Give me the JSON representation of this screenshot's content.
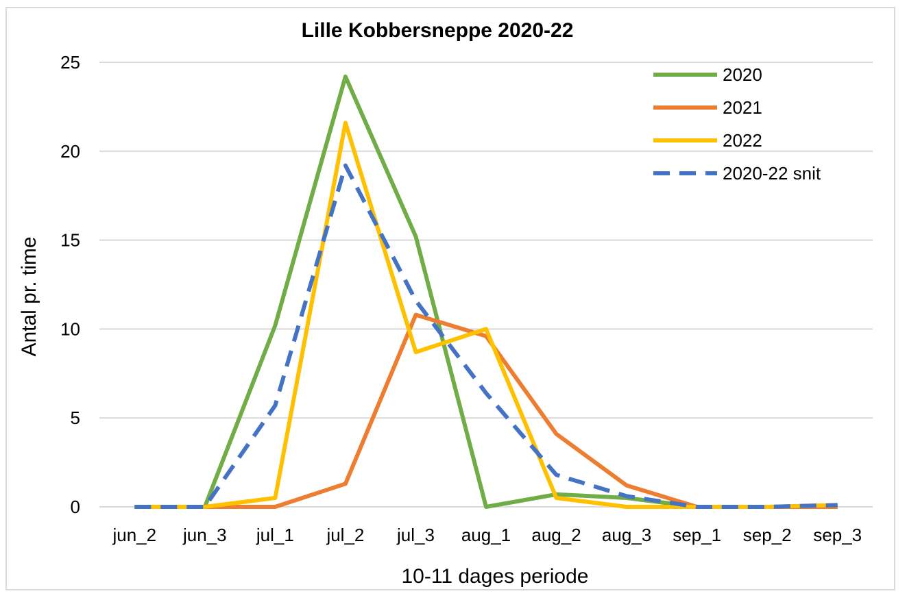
{
  "chart_data": {
    "type": "line",
    "title": "Lille Kobbersneppe 2020-22",
    "xlabel": "10-11 dages periode",
    "ylabel": "Antal pr. time",
    "ylim": [
      0,
      25
    ],
    "yticks": [
      0,
      5,
      10,
      15,
      20,
      25
    ],
    "grid": "horizontal",
    "legend_position": "top-right",
    "categories": [
      "jun_2",
      "jun_3",
      "jul_1",
      "jul_2",
      "jul_3",
      "aug_1",
      "aug_2",
      "aug_3",
      "sep_1",
      "sep_2",
      "sep_3"
    ],
    "series": [
      {
        "name": "2020",
        "color": "#70ad47",
        "dashed": false,
        "values": [
          0,
          0,
          10.2,
          24.2,
          15.2,
          0,
          0.7,
          0.5,
          0,
          0,
          0
        ]
      },
      {
        "name": "2021",
        "color": "#ed7d31",
        "dashed": false,
        "values": [
          0,
          0,
          0,
          1.3,
          10.8,
          9.6,
          4.1,
          1.2,
          0,
          0,
          0
        ]
      },
      {
        "name": "2022",
        "color": "#ffc000",
        "dashed": false,
        "values": [
          0,
          0,
          0.5,
          21.6,
          8.7,
          10,
          0.5,
          0,
          0,
          0,
          0.1
        ]
      },
      {
        "name": "2020-22 snit",
        "color": "#4472c4",
        "dashed": true,
        "values": [
          0,
          0,
          5.7,
          19.2,
          11.6,
          6.4,
          1.8,
          0.6,
          0,
          0,
          0.1
        ]
      }
    ]
  }
}
